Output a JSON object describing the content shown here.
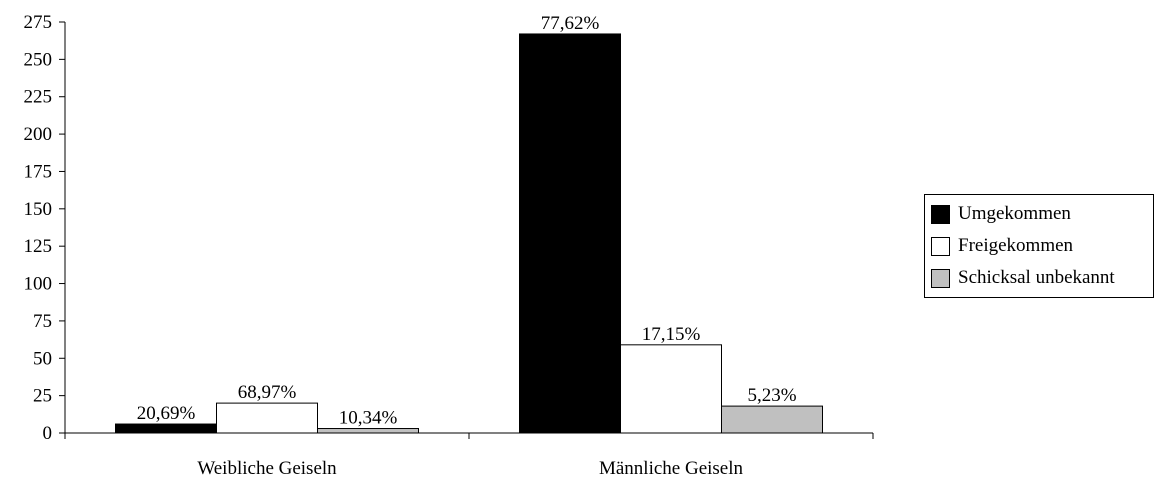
{
  "chart_data": {
    "type": "bar",
    "categories": [
      "Weibliche Geiseln",
      "Männliche Geiseln"
    ],
    "series": [
      {
        "name": "Umgekommen",
        "color": "#000000",
        "values": [
          6,
          267
        ],
        "labels": [
          "20,69%",
          "77,62%"
        ]
      },
      {
        "name": "Freigekommen",
        "color": "#ffffff",
        "values": [
          20,
          59
        ],
        "labels": [
          "68,97%",
          "17,15%"
        ]
      },
      {
        "name": "Schicksal unbekannt",
        "color": "#c0c0c0",
        "values": [
          3,
          18
        ],
        "labels": [
          "10,34%",
          "5,23%"
        ]
      }
    ],
    "ylim": [
      0,
      275
    ],
    "yticks": [
      "0",
      "25",
      "50",
      "75",
      "100",
      "125",
      "150",
      "175",
      "200",
      "225",
      "250",
      "275"
    ],
    "legend_position": "right",
    "grid": false
  }
}
